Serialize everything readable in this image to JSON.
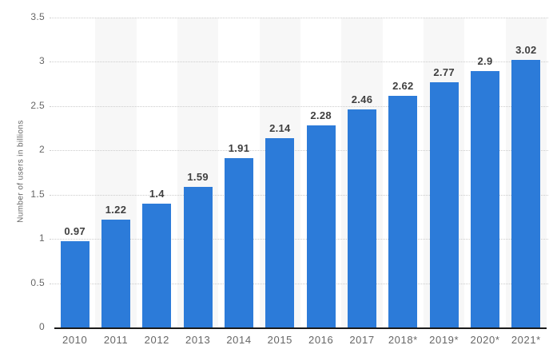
{
  "chart_data": {
    "type": "bar",
    "categories": [
      "2010",
      "2011",
      "2012",
      "2013",
      "2014",
      "2015",
      "2016",
      "2017",
      "2018*",
      "2019*",
      "2020*",
      "2021*"
    ],
    "values": [
      0.97,
      1.22,
      1.4,
      1.59,
      1.91,
      2.14,
      2.28,
      2.46,
      2.62,
      2.77,
      2.9,
      3.02
    ],
    "value_labels": [
      "0.97",
      "1.22",
      "1.4",
      "1.59",
      "1.91",
      "2.14",
      "2.28",
      "2.46",
      "2.62",
      "2.77",
      "2.9",
      "3.02"
    ],
    "title": "",
    "xlabel": "",
    "ylabel": "Number of users in billions",
    "ylim": [
      0,
      3.5
    ],
    "yticks": [
      0,
      0.5,
      1,
      1.5,
      2,
      2.5,
      3,
      3.5
    ],
    "ytick_labels": [
      "0",
      "0.5",
      "1",
      "1.5",
      "2",
      "2.5",
      "3",
      "3.5"
    ],
    "grid": true,
    "gridline_style": "dotted",
    "legend": false,
    "colors": {
      "bar": "#2c7bd9",
      "column_band": "#f7f7f7",
      "gridline": "#cccccc",
      "axis_line": "#1a1a1a",
      "value_label": "#3f3f3f",
      "tick_label": "#666666",
      "background": "#ffffff"
    }
  }
}
